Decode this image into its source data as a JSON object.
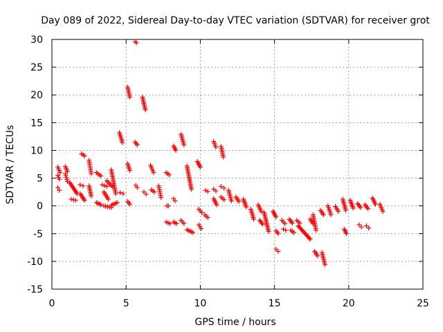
{
  "chart_data": {
    "type": "scatter",
    "title": "Day 089 of 2022, Sidereal Day-to-day VTEC variation (SDTVAR) for receiver grot",
    "xlabel": "GPS time / hours",
    "ylabel": "SDTVAR / TECUs",
    "xlim": [
      0,
      25
    ],
    "ylim": [
      -15,
      30
    ],
    "xticks": [
      0,
      5,
      10,
      15,
      20,
      25
    ],
    "yticks": [
      -15,
      -10,
      -5,
      0,
      5,
      10,
      15,
      20,
      25,
      30
    ],
    "xtick_labels": [
      "0",
      "5",
      "10",
      "15",
      "20",
      "25"
    ],
    "ytick_labels": [
      "-15",
      "-10",
      "-5",
      "0",
      "5",
      "10",
      "15",
      "20",
      "25",
      "30"
    ],
    "grid": true,
    "marker": "+",
    "color": "#ff0000",
    "segments": [
      {
        "x": [
          0.4,
          0.55
        ],
        "y": [
          7.0,
          6.0
        ]
      },
      {
        "x": [
          0.4,
          0.5
        ],
        "y": [
          5.5,
          4.8
        ]
      },
      {
        "x": [
          0.4,
          0.5
        ],
        "y": [
          3.3,
          2.8
        ]
      },
      {
        "x": [
          0.9,
          1.05
        ],
        "y": [
          7.1,
          6.2
        ]
      },
      {
        "x": [
          0.9,
          1.05
        ],
        "y": [
          5.8,
          4.4
        ]
      },
      {
        "x": [
          1.2,
          1.7
        ],
        "y": [
          4.2,
          2.2
        ]
      },
      {
        "x": [
          1.3,
          1.6
        ],
        "y": [
          1.2,
          1.0
        ]
      },
      {
        "x": [
          2.0,
          2.2
        ],
        "y": [
          9.4,
          9.0
        ]
      },
      {
        "x": [
          1.9,
          2.1
        ],
        "y": [
          3.8,
          3.6
        ]
      },
      {
        "x": [
          1.9,
          2.2
        ],
        "y": [
          2.2,
          1.0
        ]
      },
      {
        "x": [
          2.5,
          2.65
        ],
        "y": [
          8.2,
          5.8
        ]
      },
      {
        "x": [
          2.5,
          2.65
        ],
        "y": [
          3.6,
          1.8
        ]
      },
      {
        "x": [
          3.0,
          3.3
        ],
        "y": [
          6.0,
          5.4
        ]
      },
      {
        "x": [
          3.0,
          3.3
        ],
        "y": [
          0.6,
          0.2
        ]
      },
      {
        "x": [
          3.4,
          3.7
        ],
        "y": [
          3.8,
          3.5
        ]
      },
      {
        "x": [
          3.5,
          3.8
        ],
        "y": [
          2.5,
          1.2
        ]
      },
      {
        "x": [
          3.5,
          4.0
        ],
        "y": [
          0.0,
          -0.3
        ]
      },
      {
        "x": [
          3.7,
          4.1
        ],
        "y": [
          4.5,
          3.4
        ]
      },
      {
        "x": [
          4.0,
          4.3
        ],
        "y": [
          6.5,
          2.2
        ]
      },
      {
        "x": [
          4.0,
          4.4
        ],
        "y": [
          0.1,
          0.6
        ]
      },
      {
        "x": [
          4.55,
          4.75
        ],
        "y": [
          13.2,
          11.4
        ]
      },
      {
        "x": [
          4.6,
          4.8
        ],
        "y": [
          2.4,
          2.2
        ]
      },
      {
        "x": [
          5.1,
          5.25
        ],
        "y": [
          21.4,
          19.6
        ]
      },
      {
        "x": [
          5.1,
          5.25
        ],
        "y": [
          7.6,
          6.4
        ]
      },
      {
        "x": [
          5.1,
          5.25
        ],
        "y": [
          0.8,
          0.3
        ]
      },
      {
        "x": [
          5.6,
          5.7
        ],
        "y": [
          29.6,
          29.4
        ]
      },
      {
        "x": [
          5.6,
          5.75
        ],
        "y": [
          11.5,
          11.0
        ]
      },
      {
        "x": [
          5.65,
          5.75
        ],
        "y": [
          3.7,
          3.3
        ]
      },
      {
        "x": [
          6.1,
          6.3
        ],
        "y": [
          19.6,
          17.3
        ]
      },
      {
        "x": [
          6.2,
          6.35
        ],
        "y": [
          2.5,
          2.1
        ]
      },
      {
        "x": [
          6.65,
          6.85
        ],
        "y": [
          7.3,
          6.0
        ]
      },
      {
        "x": [
          6.7,
          6.9
        ],
        "y": [
          2.9,
          2.5
        ]
      },
      {
        "x": [
          7.2,
          7.35
        ],
        "y": [
          3.6,
          1.5
        ]
      },
      {
        "x": [
          7.7,
          7.9
        ],
        "y": [
          6.0,
          5.6
        ]
      },
      {
        "x": [
          7.75,
          7.85
        ],
        "y": [
          0.0,
          0.0
        ]
      },
      {
        "x": [
          7.7,
          7.95
        ],
        "y": [
          -2.9,
          -3.2
        ]
      },
      {
        "x": [
          8.2,
          8.35
        ],
        "y": [
          10.8,
          10.0
        ]
      },
      {
        "x": [
          8.2,
          8.3
        ],
        "y": [
          1.3,
          0.9
        ]
      },
      {
        "x": [
          8.2,
          8.4
        ],
        "y": [
          -2.9,
          -3.2
        ]
      },
      {
        "x": [
          8.7,
          8.9
        ],
        "y": [
          12.9,
          11.0
        ]
      },
      {
        "x": [
          8.7,
          8.9
        ],
        "y": [
          -2.6,
          -3.2
        ]
      },
      {
        "x": [
          9.1,
          9.4
        ],
        "y": [
          7.2,
          3.0
        ]
      },
      {
        "x": [
          9.1,
          9.5
        ],
        "y": [
          -4.3,
          -4.8
        ]
      },
      {
        "x": [
          9.8,
          10.0
        ],
        "y": [
          8.0,
          7.0
        ]
      },
      {
        "x": [
          9.9,
          10.1
        ],
        "y": [
          -0.6,
          -1.2
        ]
      },
      {
        "x": [
          9.9,
          10.05
        ],
        "y": [
          -3.4,
          -4.1
        ]
      },
      {
        "x": [
          10.35,
          10.5
        ],
        "y": [
          2.8,
          2.6
        ]
      },
      {
        "x": [
          10.3,
          10.5
        ],
        "y": [
          -1.6,
          -2.1
        ]
      },
      {
        "x": [
          10.9,
          11.05
        ],
        "y": [
          11.6,
          10.6
        ]
      },
      {
        "x": [
          10.9,
          11.05
        ],
        "y": [
          3.0,
          2.7
        ]
      },
      {
        "x": [
          10.9,
          11.1
        ],
        "y": [
          1.3,
          0.2
        ]
      },
      {
        "x": [
          11.4,
          11.55
        ],
        "y": [
          10.7,
          8.8
        ]
      },
      {
        "x": [
          11.4,
          11.6
        ],
        "y": [
          3.5,
          3.2
        ]
      },
      {
        "x": [
          11.4,
          11.6
        ],
        "y": [
          1.6,
          1.1
        ]
      },
      {
        "x": [
          11.9,
          12.1
        ],
        "y": [
          2.8,
          0.9
        ]
      },
      {
        "x": [
          12.4,
          12.6
        ],
        "y": [
          1.6,
          0.8
        ]
      },
      {
        "x": [
          12.9,
          13.1
        ],
        "y": [
          1.2,
          -0.2
        ]
      },
      {
        "x": [
          13.4,
          13.6
        ],
        "y": [
          -0.6,
          -2.4
        ]
      },
      {
        "x": [
          13.9,
          14.1
        ],
        "y": [
          0.2,
          -1.0
        ]
      },
      {
        "x": [
          14.0,
          14.2
        ],
        "y": [
          -2.6,
          -3.3
        ]
      },
      {
        "x": [
          14.3,
          14.6
        ],
        "y": [
          -1.2,
          -4.6
        ]
      },
      {
        "x": [
          14.9,
          15.1
        ],
        "y": [
          -1.0,
          -2.0
        ]
      },
      {
        "x": [
          15.1,
          15.25
        ],
        "y": [
          -4.5,
          -5.0
        ]
      },
      {
        "x": [
          15.1,
          15.25
        ],
        "y": [
          -7.8,
          -8.2
        ]
      },
      {
        "x": [
          15.5,
          15.7
        ],
        "y": [
          -2.6,
          -3.2
        ]
      },
      {
        "x": [
          15.6,
          15.75
        ],
        "y": [
          -4.2,
          -4.4
        ]
      },
      {
        "x": [
          16.0,
          16.2
        ],
        "y": [
          -2.4,
          -3.1
        ]
      },
      {
        "x": [
          16.1,
          16.3
        ],
        "y": [
          -4.4,
          -4.8
        ]
      },
      {
        "x": [
          16.5,
          16.7
        ],
        "y": [
          -2.6,
          -3.1
        ]
      },
      {
        "x": [
          16.6,
          17.4
        ],
        "y": [
          -3.6,
          -6.0
        ]
      },
      {
        "x": [
          17.4,
          17.6
        ],
        "y": [
          -2.4,
          -3.2
        ]
      },
      {
        "x": [
          17.6,
          17.8
        ],
        "y": [
          -1.6,
          -4.4
        ]
      },
      {
        "x": [
          17.7,
          17.9
        ],
        "y": [
          -8.2,
          -9.0
        ]
      },
      {
        "x": [
          18.1,
          18.3
        ],
        "y": [
          -0.8,
          -1.6
        ]
      },
      {
        "x": [
          18.2,
          18.4
        ],
        "y": [
          -8.4,
          -10.6
        ]
      },
      {
        "x": [
          18.6,
          18.8
        ],
        "y": [
          0.0,
          -1.6
        ]
      },
      {
        "x": [
          19.1,
          19.3
        ],
        "y": [
          -0.1,
          -1.0
        ]
      },
      {
        "x": [
          19.6,
          19.8
        ],
        "y": [
          1.2,
          -0.8
        ]
      },
      {
        "x": [
          19.7,
          19.85
        ],
        "y": [
          -4.2,
          -5.0
        ]
      },
      {
        "x": [
          20.1,
          20.3
        ],
        "y": [
          1.0,
          -0.4
        ]
      },
      {
        "x": [
          20.6,
          20.8
        ],
        "y": [
          0.4,
          -0.3
        ]
      },
      {
        "x": [
          20.7,
          20.85
        ],
        "y": [
          -3.4,
          -3.8
        ]
      },
      {
        "x": [
          21.1,
          21.3
        ],
        "y": [
          0.2,
          -0.5
        ]
      },
      {
        "x": [
          21.2,
          21.35
        ],
        "y": [
          -3.6,
          -4.0
        ]
      },
      {
        "x": [
          21.6,
          21.8
        ],
        "y": [
          1.4,
          0.3
        ]
      },
      {
        "x": [
          22.1,
          22.3
        ],
        "y": [
          0.3,
          -1.0
        ]
      }
    ]
  }
}
